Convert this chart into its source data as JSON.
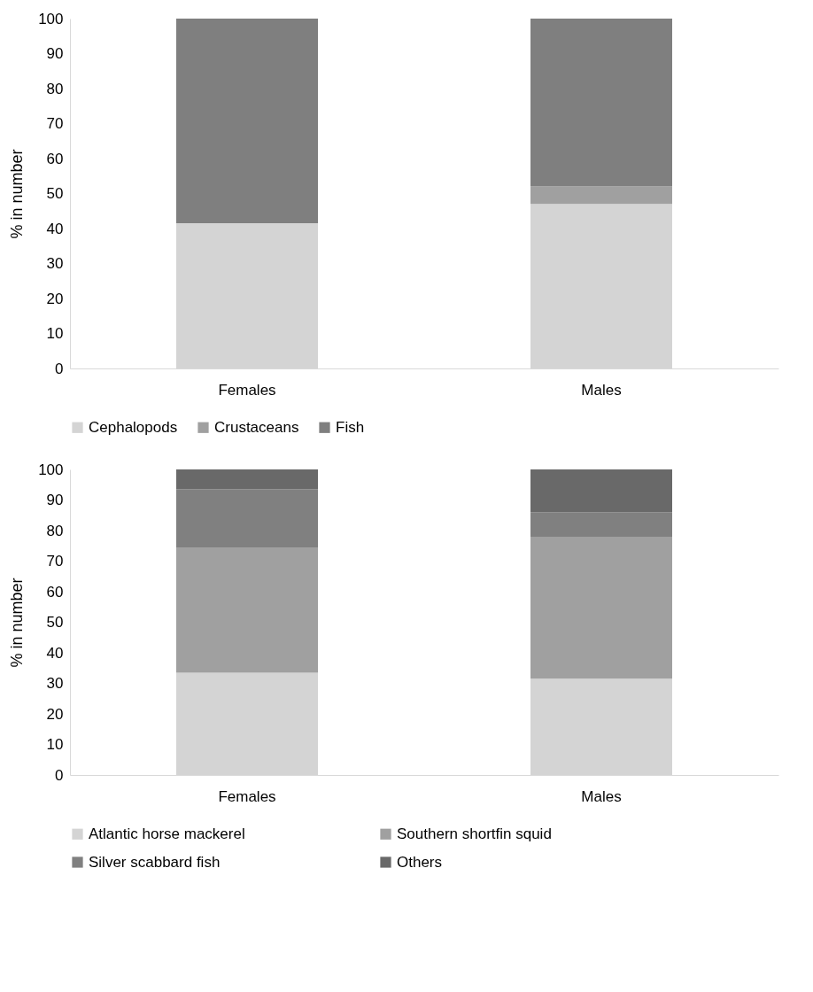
{
  "chart_data": [
    {
      "type": "bar",
      "stacked": true,
      "ylabel": "% in number",
      "categories": [
        "Females",
        "Males"
      ],
      "ylim": [
        0,
        100
      ],
      "yticks": [
        0,
        10,
        20,
        30,
        40,
        50,
        60,
        70,
        80,
        90,
        100
      ],
      "grid": false,
      "legend": "bottom",
      "series": [
        {
          "name": "Cephalopods",
          "color": "#d4d4d4",
          "values": [
            41.5,
            47
          ]
        },
        {
          "name": "Crustaceans",
          "color": "#a0a0a0",
          "values": [
            0,
            5
          ]
        },
        {
          "name": "Fish",
          "color": "#7f7f7f",
          "values": [
            58.5,
            48
          ]
        }
      ]
    },
    {
      "type": "bar",
      "stacked": true,
      "ylabel": "% in number",
      "categories": [
        "Females",
        "Males"
      ],
      "ylim": [
        0,
        100
      ],
      "yticks": [
        0,
        10,
        20,
        30,
        40,
        50,
        60,
        70,
        80,
        90,
        100
      ],
      "grid": false,
      "legend": "bottom",
      "series": [
        {
          "name": "Atlantic horse mackerel",
          "color": "#d4d4d4",
          "values": [
            33.5,
            31.5
          ]
        },
        {
          "name": "Southern shortfin squid",
          "color": "#a0a0a0",
          "values": [
            41,
            46.5
          ]
        },
        {
          "name": "Silver scabbard fish",
          "color": "#808080",
          "values": [
            19,
            8
          ]
        },
        {
          "name": "Others",
          "color": "#696969",
          "values": [
            6.5,
            14
          ]
        }
      ]
    }
  ]
}
